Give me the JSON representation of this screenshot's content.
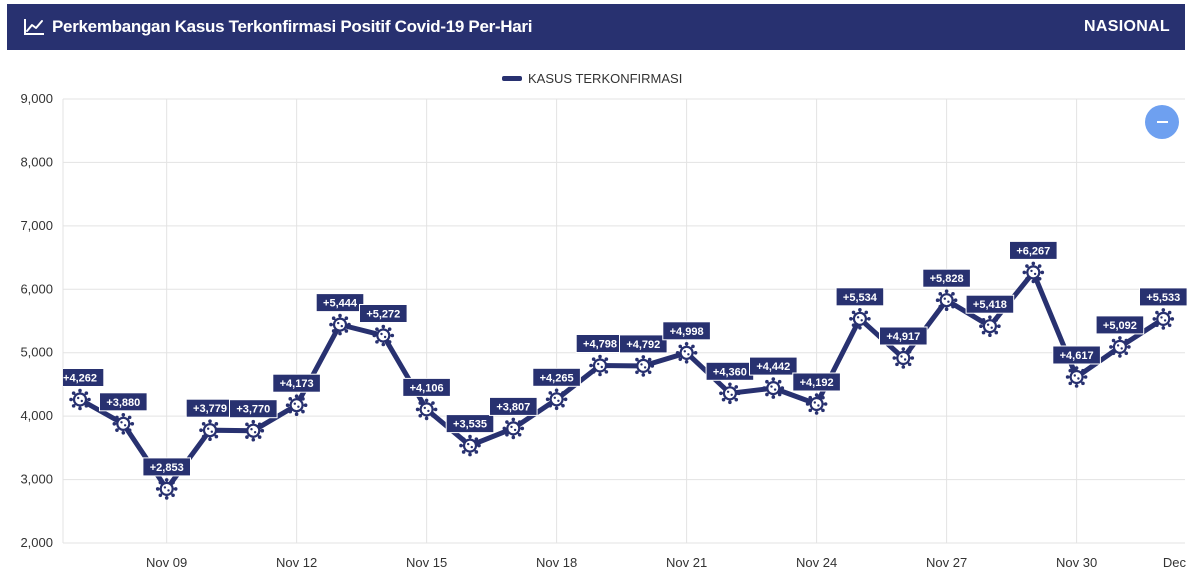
{
  "header": {
    "title": "Perkembangan Kasus Terkonfirmasi Positif Covid-19 Per-Hari",
    "scope": "NASIONAL",
    "icon": "line-chart-icon"
  },
  "colors": {
    "header_bg": "#283170",
    "series": "#283170",
    "zoom_button": "#6ea0f0",
    "grid": "#e3e3e3"
  },
  "zoom_button": {
    "icon": "minus-icon"
  },
  "chart_data": {
    "type": "line",
    "legend": {
      "position": "top-center"
    },
    "grid": true,
    "ylim": [
      2000,
      9000
    ],
    "yticks": [
      "2,000",
      "3,000",
      "4,000",
      "5,000",
      "6,000",
      "7,000",
      "8,000",
      "9,000"
    ],
    "xticks": [
      "Nov 09",
      "Nov 12",
      "Nov 15",
      "Nov 18",
      "Nov 21",
      "Nov 24",
      "Nov 27",
      "Nov 30",
      "Dec"
    ],
    "marker": "virus-icon",
    "series": [
      {
        "name": "KASUS TERKONFIRMASI",
        "x": [
          "Nov 07",
          "Nov 08",
          "Nov 09",
          "Nov 10",
          "Nov 11",
          "Nov 12",
          "Nov 13",
          "Nov 14",
          "Nov 15",
          "Nov 16",
          "Nov 17",
          "Nov 18",
          "Nov 19",
          "Nov 20",
          "Nov 21",
          "Nov 22",
          "Nov 23",
          "Nov 24",
          "Nov 25",
          "Nov 26",
          "Nov 27",
          "Nov 28",
          "Nov 29",
          "Nov 30",
          "Dec 01",
          "Dec 02"
        ],
        "values": [
          4262,
          3880,
          2853,
          3779,
          3770,
          4173,
          5444,
          5272,
          4106,
          3535,
          3807,
          4265,
          4798,
          4792,
          4998,
          4360,
          4442,
          4192,
          5534,
          4917,
          5828,
          5418,
          6267,
          4617,
          5092,
          5533
        ],
        "labels": [
          "+4,262",
          "+3,880",
          "+2,853",
          "+3,779",
          "+3,770",
          "+4,173",
          "+5,444",
          "+5,272",
          "+4,106",
          "+3,535",
          "+3,807",
          "+4,265",
          "+4,798",
          "+4,792",
          "+4,998",
          "+4,360",
          "+4,442",
          "+4,192",
          "+5,534",
          "+4,917",
          "+5,828",
          "+5,418",
          "+6,267",
          "+4,617",
          "+5,092",
          "+5,533"
        ]
      }
    ]
  }
}
